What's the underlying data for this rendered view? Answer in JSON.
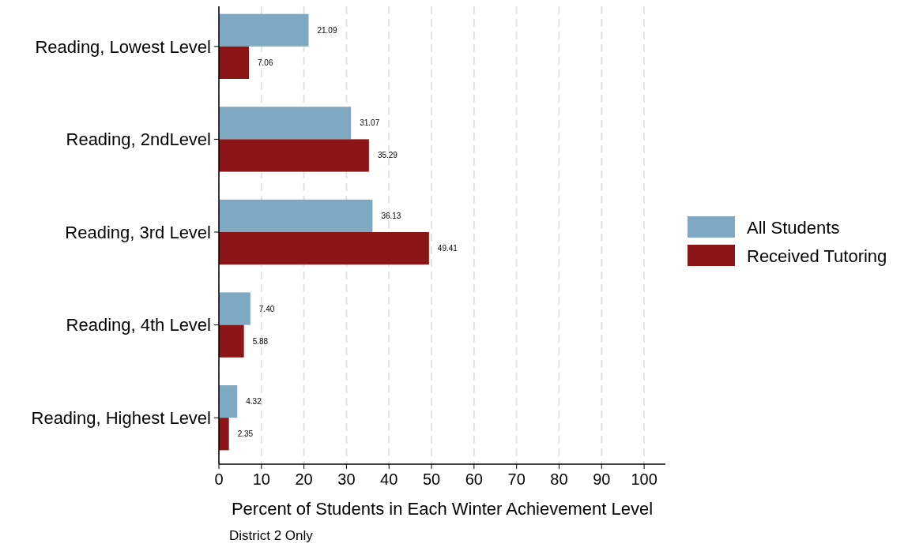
{
  "chart_data": {
    "type": "bar",
    "orientation": "horizontal",
    "xlabel": "Percent of Students in Each Winter Achievement Level",
    "annotations": [
      "District 2 Only"
    ],
    "categories": [
      "Reading, Lowest Level",
      "Reading, 2ndLevel",
      "Reading, 3rd Level",
      "Reading, 4th Level",
      "Reading, Highest Level"
    ],
    "series": [
      {
        "name": "All Students",
        "color": "#7fa8c2",
        "values": [
          21.09,
          31.07,
          36.13,
          7.4,
          4.32
        ],
        "value_labels": [
          "21.09",
          "31.07",
          "36.13",
          "7.40",
          "4.32"
        ]
      },
      {
        "name": "Received Tutoring",
        "color": "#8b1517",
        "values": [
          7.06,
          35.29,
          49.41,
          5.88,
          2.35
        ],
        "value_labels": [
          "7.06",
          "35.29",
          "49.41",
          "5.88",
          "2.35"
        ]
      }
    ],
    "xlim": [
      0,
      105
    ],
    "xticks": [
      0,
      10,
      20,
      30,
      40,
      50,
      60,
      70,
      80,
      90,
      100
    ],
    "grid": "x",
    "legend": "right"
  }
}
